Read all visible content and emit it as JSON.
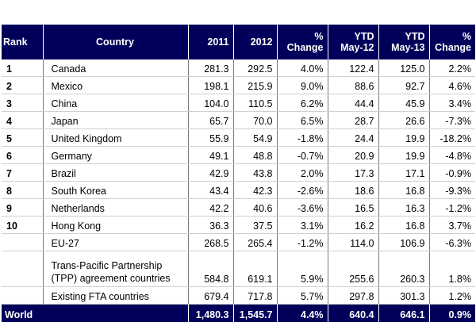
{
  "headers": {
    "rank": "Rank",
    "country": "Country",
    "y2011": "2011",
    "y2012": "2012",
    "pct_change_1": [
      "%",
      "Change"
    ],
    "ytd_may12": [
      "YTD",
      "May-12"
    ],
    "ytd_may13": [
      "YTD",
      "May-13"
    ],
    "pct_change_2": [
      "%",
      "Change"
    ]
  },
  "ranked_rows": [
    {
      "rank": "1",
      "country": "Canada",
      "y2011": "281.3",
      "y2012": "292.5",
      "pct1": "4.0%",
      "ytd12": "122.4",
      "ytd13": "125.0",
      "pct2": "2.2%"
    },
    {
      "rank": "2",
      "country": "Mexico",
      "y2011": "198.1",
      "y2012": "215.9",
      "pct1": "9.0%",
      "ytd12": "88.6",
      "ytd13": "92.7",
      "pct2": "4.6%"
    },
    {
      "rank": "3",
      "country": "China",
      "y2011": "104.0",
      "y2012": "110.5",
      "pct1": "6.2%",
      "ytd12": "44.4",
      "ytd13": "45.9",
      "pct2": "3.4%"
    },
    {
      "rank": "4",
      "country": "Japan",
      "y2011": "65.7",
      "y2012": "70.0",
      "pct1": "6.5%",
      "ytd12": "28.7",
      "ytd13": "26.6",
      "pct2": "-7.3%"
    },
    {
      "rank": "5",
      "country": "United Kingdom",
      "y2011": "55.9",
      "y2012": "54.9",
      "pct1": "-1.8%",
      "ytd12": "24.4",
      "ytd13": "19.9",
      "pct2": "-18.2%"
    },
    {
      "rank": "6",
      "country": "Germany",
      "y2011": "49.1",
      "y2012": "48.8",
      "pct1": "-0.7%",
      "ytd12": "20.9",
      "ytd13": "19.9",
      "pct2": "-4.8%"
    },
    {
      "rank": "7",
      "country": "Brazil",
      "y2011": "42.9",
      "y2012": "43.8",
      "pct1": "2.0%",
      "ytd12": "17.3",
      "ytd13": "17.1",
      "pct2": "-0.9%"
    },
    {
      "rank": "8",
      "country": "South Korea",
      "y2011": "43.4",
      "y2012": "42.3",
      "pct1": "-2.6%",
      "ytd12": "18.6",
      "ytd13": "16.8",
      "pct2": "-9.3%"
    },
    {
      "rank": "9",
      "country": "Netherlands",
      "y2011": "42.2",
      "y2012": "40.6",
      "pct1": "-3.6%",
      "ytd12": "16.5",
      "ytd13": "16.3",
      "pct2": "-1.2%"
    },
    {
      "rank": "10",
      "country": "Hong Kong",
      "y2011": "36.3",
      "y2012": "37.5",
      "pct1": "3.1%",
      "ytd12": "16.2",
      "ytd13": "16.8",
      "pct2": "3.7%"
    }
  ],
  "group_rows": [
    {
      "country": "EU-27",
      "y2011": "268.5",
      "y2012": "265.4",
      "pct1": "-1.2%",
      "ytd12": "114.0",
      "ytd13": "106.9",
      "pct2": "-6.3%"
    },
    {
      "country": "Trans-Pacific Partnership (TPP) agreement countries",
      "y2011": "584.8",
      "y2012": "619.1",
      "pct1": "5.9%",
      "ytd12": "255.6",
      "ytd13": "260.3",
      "pct2": "1.8%"
    },
    {
      "country": "Existing FTA countries",
      "y2011": "679.4",
      "y2012": "717.8",
      "pct1": "5.7%",
      "ytd12": "297.8",
      "ytd13": "301.3",
      "pct2": "1.2%"
    }
  ],
  "world_row": {
    "country": "World",
    "y2011": "1,480.3",
    "y2012": "1,545.7",
    "pct1": "4.4%",
    "ytd12": "640.4",
    "ytd13": "646.1",
    "pct2": "0.9%"
  },
  "colors": {
    "header_bg": "#00005a",
    "header_text": "#ffffff"
  }
}
